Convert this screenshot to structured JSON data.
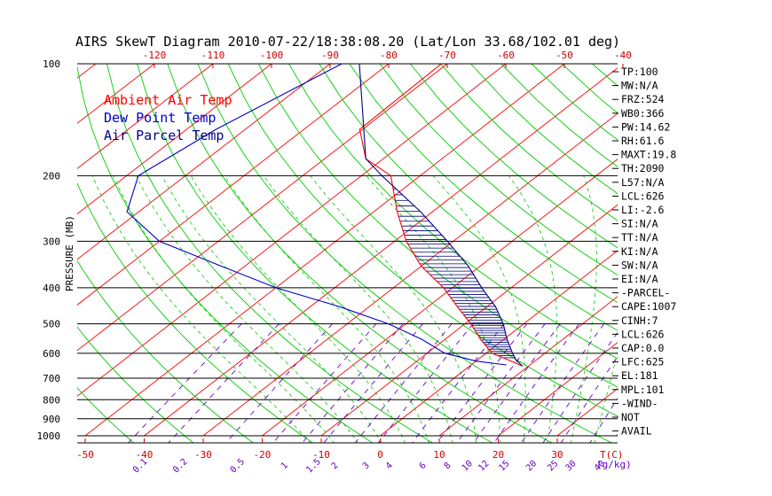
{
  "chart_data": {
    "type": "line",
    "title": "AIRS SkewT Diagram 2010-07-22/18:38:08.20 (Lat/Lon 33.68/102.01 deg)",
    "ylabel": "PRESSURE (MB)",
    "pressure_ticks": [
      100,
      200,
      300,
      400,
      500,
      600,
      700,
      800,
      900,
      1000
    ],
    "top_temp_ticks": [
      -120,
      -110,
      -100,
      -90,
      -80,
      -70,
      -60,
      -50,
      -40
    ],
    "bottom_temp_ticks": [
      -50,
      -40,
      -30,
      -20,
      -10,
      0,
      10,
      20,
      30
    ],
    "bottom_axis_label": "T(C)",
    "mixing_ratio_ticks": [
      "0.1",
      "0.2",
      "0.5",
      "1",
      "1.5",
      "2",
      "3",
      "4",
      "6",
      "8",
      "10",
      "12",
      "15",
      "20",
      "25",
      "30",
      "40"
    ],
    "mixing_ratio_label": "(g/kg)",
    "legend": [
      {
        "label": "Ambient Air Temp",
        "color": "#ff0000"
      },
      {
        "label": "Dew Point Temp",
        "color": "#0000cc"
      },
      {
        "label": "Air Parcel Temp",
        "color": "#000080"
      }
    ],
    "series": [
      {
        "name": "Ambient Air Temp",
        "color": "#ff0000",
        "points": [
          {
            "p": 100,
            "t": -71
          },
          {
            "p": 150,
            "t": -70.5
          },
          {
            "p": 180,
            "t": -63
          },
          {
            "p": 200,
            "t": -55
          },
          {
            "p": 250,
            "t": -46
          },
          {
            "p": 300,
            "t": -38
          },
          {
            "p": 350,
            "t": -30
          },
          {
            "p": 400,
            "t": -21.5
          },
          {
            "p": 450,
            "t": -15
          },
          {
            "p": 500,
            "t": -9
          },
          {
            "p": 550,
            "t": -4
          },
          {
            "p": 600,
            "t": 1
          },
          {
            "p": 630,
            "t": 6
          },
          {
            "p": 650,
            "t": 9
          }
        ]
      },
      {
        "name": "Dew Point Temp",
        "color": "#0000cc",
        "points": [
          {
            "p": 100,
            "t": -88
          },
          {
            "p": 150,
            "t": -95
          },
          {
            "p": 200,
            "t": -98
          },
          {
            "p": 250,
            "t": -92
          },
          {
            "p": 300,
            "t": -80
          },
          {
            "p": 350,
            "t": -64
          },
          {
            "p": 400,
            "t": -50
          },
          {
            "p": 450,
            "t": -35
          },
          {
            "p": 500,
            "t": -23
          },
          {
            "p": 550,
            "t": -14
          },
          {
            "p": 600,
            "t": -7
          },
          {
            "p": 630,
            "t": 0
          },
          {
            "p": 645,
            "t": 6
          }
        ]
      },
      {
        "name": "Air Parcel Temp",
        "color": "#000080",
        "points": [
          {
            "p": 100,
            "t": -85
          },
          {
            "p": 180,
            "t": -63
          },
          {
            "p": 200,
            "t": -56.5
          },
          {
            "p": 250,
            "t": -42
          },
          {
            "p": 300,
            "t": -31
          },
          {
            "p": 350,
            "t": -22
          },
          {
            "p": 400,
            "t": -15
          },
          {
            "p": 450,
            "t": -8.5
          },
          {
            "p": 500,
            "t": -3.5
          },
          {
            "p": 550,
            "t": 0.5
          },
          {
            "p": 600,
            "t": 4.5
          },
          {
            "p": 625,
            "t": 6.5
          },
          {
            "p": 650,
            "t": 9
          }
        ]
      }
    ]
  },
  "indices": [
    "TP:100",
    "MW:N/A",
    "FRZ:524",
    "WB0:366",
    "PW:14.62",
    "RH:61.6",
    "MAXT:19.8",
    "TH:2090",
    "L57:N/A",
    "LCL:626",
    "LI:-2.6",
    "SI:N/A",
    "TT:N/A",
    "KI:N/A",
    "SW:N/A",
    "EI:N/A",
    "-PARCEL-",
    "CAPE:1007",
    "CINH:7",
    "LCL:626",
    "CAP:0.0",
    "LFC:625",
    "EL:181",
    "MPL:101",
    "-WIND-",
    "NOT",
    "AVAIL"
  ],
  "colors": {
    "isotherm": "#ff0000",
    "dry_adiabat": "#00cc00",
    "moist_adiabat": "#00cc00",
    "mixing_ratio": "#6600cc",
    "isobar": "#000000",
    "tick_text": "#cc0000",
    "mixing_text": "#6600cc",
    "text": "#000000"
  }
}
